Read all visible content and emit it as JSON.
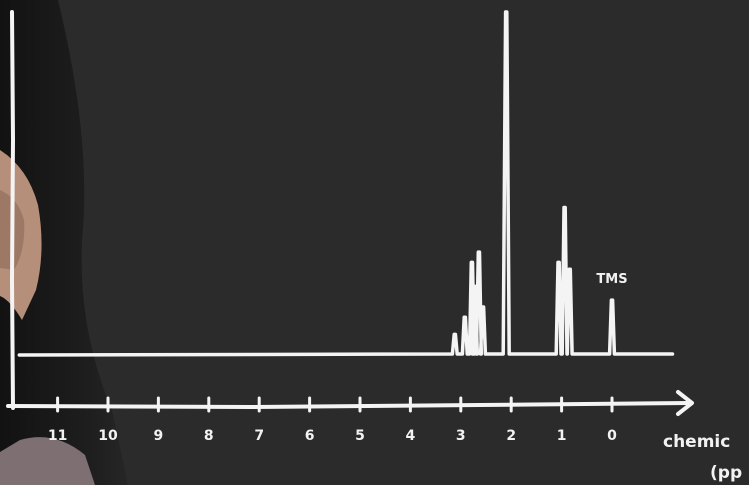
{
  "chart_data": {
    "type": "line",
    "title": "",
    "xlabel": "chemic",
    "xlabel_line2": "(pp",
    "ylabel": "",
    "x_reversed": true,
    "xlim": [
      11.8,
      -0.5
    ],
    "ylim": [
      0,
      1
    ],
    "grid": false,
    "x_ticks": [
      11,
      10,
      9,
      8,
      7,
      6,
      5,
      4,
      3,
      2,
      1,
      0
    ],
    "x_tick_labels": [
      "11",
      "10",
      "9",
      "8",
      "7",
      "6",
      "5",
      "4",
      "3",
      "2",
      "1",
      "0"
    ],
    "baseline": 0.0,
    "peaks": [
      {
        "ppm": 3.12,
        "height": 0.06
      },
      {
        "ppm": 2.92,
        "height": 0.11
      },
      {
        "ppm": 2.78,
        "height": 0.27
      },
      {
        "ppm": 2.72,
        "height": 0.2
      },
      {
        "ppm": 2.64,
        "height": 0.3
      },
      {
        "ppm": 2.56,
        "height": 0.14
      },
      {
        "ppm": 2.1,
        "height": 1.0
      },
      {
        "ppm": 1.06,
        "height": 0.27
      },
      {
        "ppm": 0.94,
        "height": 0.43
      },
      {
        "ppm": 0.84,
        "height": 0.25
      },
      {
        "ppm": 0.0,
        "height": 0.16
      }
    ],
    "annotations": [
      {
        "text": "TMS",
        "ppm": 0.0
      }
    ]
  }
}
